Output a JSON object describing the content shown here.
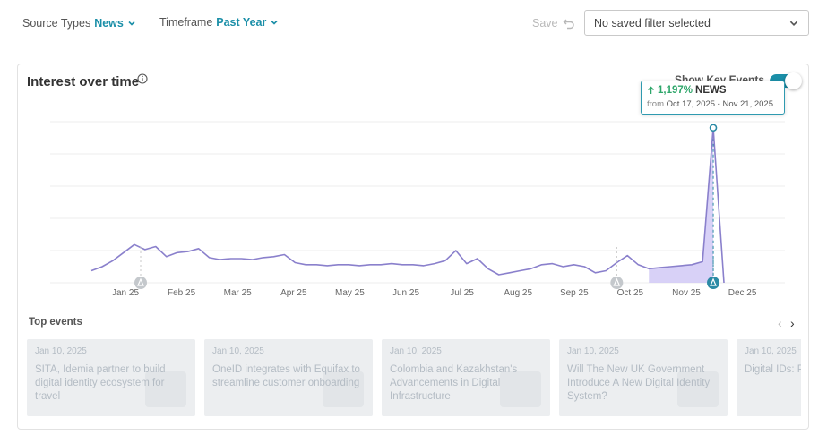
{
  "filters": {
    "source_label": "Source Types",
    "source_value": "News",
    "timeframe_label": "Timeframe",
    "timeframe_value": "Past Year"
  },
  "toolbar": {
    "save_label": "Save",
    "saved_filter_value": "No saved filter selected"
  },
  "card": {
    "title": "Interest over time",
    "key_events_label": "Show Key Events",
    "key_events_on": true
  },
  "tooltip": {
    "change": "1,197%",
    "source": "NEWS",
    "from_label": "from",
    "range": "Oct 17, 2025 - Nov 21, 2025"
  },
  "chart_data": {
    "type": "line",
    "title": "Interest over time",
    "x_ticks": [
      "Jan 25",
      "Feb 25",
      "Mar 25",
      "Apr 25",
      "May 25",
      "Jun 25",
      "Jul 25",
      "Aug 25",
      "Sep 25",
      "Oct 25",
      "Nov 25",
      "Dec 25"
    ],
    "series": [
      {
        "name": "News",
        "values": [
          12,
          16,
          22,
          30,
          38,
          33,
          36,
          26,
          30,
          31,
          34,
          25,
          23,
          24,
          24,
          23,
          25,
          26,
          28,
          20,
          18,
          18,
          17,
          18,
          18,
          17,
          18,
          18,
          19,
          18,
          18,
          17,
          19,
          22,
          32,
          19,
          24,
          14,
          8,
          10,
          12,
          14,
          18,
          19,
          16,
          18,
          16,
          10,
          12,
          20,
          27,
          18,
          14,
          15,
          16,
          17,
          18,
          21,
          154,
          0
        ]
      }
    ],
    "ylim": [
      0,
      160
    ],
    "grid": true,
    "highlight_range": "Oct 17, 2025 - Nov 21, 2025",
    "key_events": [
      "Jan 10, 2025",
      "Oct 17, 2025",
      "Nov 21, 2025"
    ],
    "colors": {
      "line": "#8a80cc",
      "highlight_fill": "#d4ccf6",
      "marker": "#2b8aa5",
      "grid": "#ececec"
    }
  },
  "top_events": {
    "title": "Top events",
    "items": [
      {
        "date": "Jan 10, 2025",
        "title": "SITA, Idemia partner to build digital identity ecosystem for travel"
      },
      {
        "date": "Jan 10, 2025",
        "title": "OneID integrates with Equifax to streamline customer onboarding"
      },
      {
        "date": "Jan 10, 2025",
        "title": "Colombia and Kazakhstan's Advancements in Digital Infrastructure"
      },
      {
        "date": "Jan 10, 2025",
        "title": "Will The New UK Government Introduce A New Digital Identity System?"
      },
      {
        "date": "Jan 10, 2025",
        "title": "Digital IDs: Payments in"
      }
    ]
  },
  "colors": {
    "accent": "#1b8fa8",
    "muted_text": "#b4bcc4",
    "positive": "#2ea66a"
  }
}
